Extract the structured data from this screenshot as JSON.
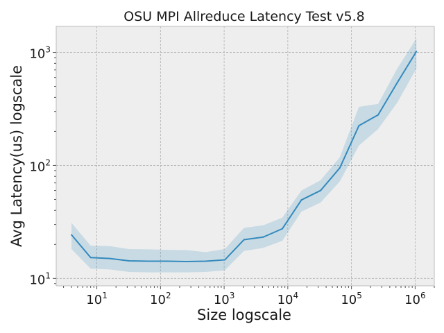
{
  "chart_data": {
    "type": "line",
    "title": "OSU MPI Allreduce Latency Test v5.8",
    "xlabel": "Size logscale",
    "ylabel": "Avg Latency(us) logscale",
    "xscale": "log",
    "yscale": "log",
    "xlim": [
      2.3,
      2000000
    ],
    "ylim": [
      8.6,
      1700
    ],
    "grid": true,
    "x_ticks": [
      {
        "mantissa": "10",
        "exp": "1",
        "value": 10
      },
      {
        "mantissa": "10",
        "exp": "2",
        "value": 100
      },
      {
        "mantissa": "10",
        "exp": "3",
        "value": 1000
      },
      {
        "mantissa": "10",
        "exp": "4",
        "value": 10000
      },
      {
        "mantissa": "10",
        "exp": "5",
        "value": 100000
      },
      {
        "mantissa": "10",
        "exp": "6",
        "value": 1000000
      }
    ],
    "y_ticks": [
      {
        "mantissa": "10",
        "exp": "1",
        "value": 10
      },
      {
        "mantissa": "10",
        "exp": "2",
        "value": 100
      },
      {
        "mantissa": "10",
        "exp": "3",
        "value": 1000
      }
    ],
    "colors": {
      "line": "#348abd",
      "band": "#348abd",
      "background": "#eeeeee",
      "frame": "#bcbcbc"
    },
    "series": [
      {
        "x": [
          4,
          8,
          16,
          32,
          64,
          128,
          256,
          512,
          1024,
          2048,
          4096,
          8192,
          16384,
          32768,
          65536,
          131072,
          262144,
          524288,
          1048576
        ],
        "y": [
          24.3,
          15.3,
          15.0,
          14.3,
          14.2,
          14.2,
          14.1,
          14.2,
          14.6,
          22.0,
          23.2,
          27.5,
          49.5,
          60.0,
          95.0,
          225,
          280,
          540,
          1020
        ],
        "lower": [
          18.2,
          12.2,
          12.0,
          11.4,
          11.3,
          11.3,
          11.3,
          11.4,
          11.8,
          17.5,
          18.6,
          21.5,
          39.0,
          47.0,
          72.0,
          150,
          210,
          360,
          720
        ],
        "upper": [
          31.0,
          19.5,
          19.3,
          18.2,
          18.1,
          17.9,
          17.8,
          17.1,
          18.2,
          28.0,
          29.5,
          34.5,
          60.0,
          74.0,
          118.0,
          330,
          350,
          720,
          1330
        ]
      }
    ]
  }
}
